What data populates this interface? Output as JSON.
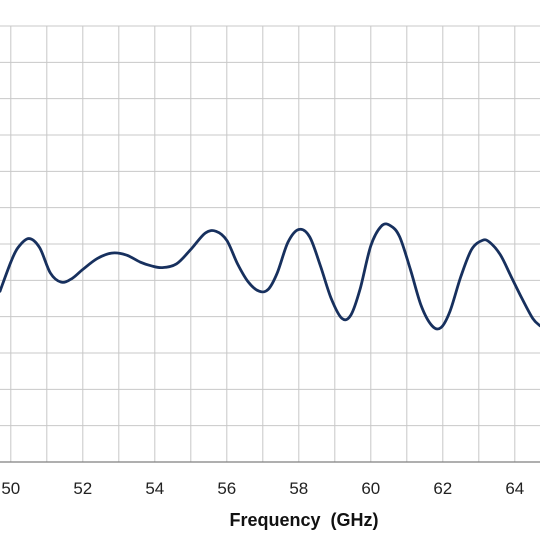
{
  "chart_data": {
    "type": "line",
    "title": "",
    "xlabel": "Frequency  (GHz)",
    "ylabel": "",
    "xlim": [
      49.7,
      64.7
    ],
    "ylim": [
      0,
      12
    ],
    "grid": true,
    "x_grid_step": 1,
    "y_grid_step": 1,
    "x_ticks": [
      50,
      52,
      54,
      56,
      58,
      60,
      62,
      64
    ],
    "x_tick_labels": [
      "50",
      "52",
      "54",
      "56",
      "58",
      "60",
      "62",
      "64"
    ],
    "series": [
      {
        "color": "#17305e",
        "x": [
          49.7,
          50.0,
          50.2,
          50.5,
          50.8,
          51.1,
          51.4,
          51.7,
          52.0,
          52.4,
          52.8,
          53.2,
          53.6,
          53.9,
          54.2,
          54.6,
          55.0,
          55.4,
          55.7,
          56.0,
          56.3,
          56.6,
          56.9,
          57.15,
          57.4,
          57.7,
          58.0,
          58.3,
          58.6,
          58.9,
          59.2,
          59.45,
          59.7,
          60.0,
          60.3,
          60.55,
          60.8,
          61.1,
          61.4,
          61.7,
          61.95,
          62.2,
          62.5,
          62.8,
          63.1,
          63.3,
          63.6,
          63.9,
          64.2,
          64.5,
          64.7
        ],
        "values": [
          4.7,
          5.5,
          5.9,
          6.15,
          5.9,
          5.2,
          4.95,
          5.05,
          5.3,
          5.6,
          5.75,
          5.7,
          5.5,
          5.4,
          5.35,
          5.45,
          5.85,
          6.3,
          6.35,
          6.1,
          5.45,
          4.95,
          4.7,
          4.75,
          5.2,
          6.05,
          6.4,
          6.2,
          5.4,
          4.5,
          3.95,
          4.05,
          4.75,
          5.95,
          6.5,
          6.5,
          6.2,
          5.3,
          4.3,
          3.75,
          3.7,
          4.15,
          5.1,
          5.85,
          6.1,
          6.05,
          5.7,
          5.1,
          4.5,
          3.95,
          3.75
        ]
      }
    ]
  }
}
